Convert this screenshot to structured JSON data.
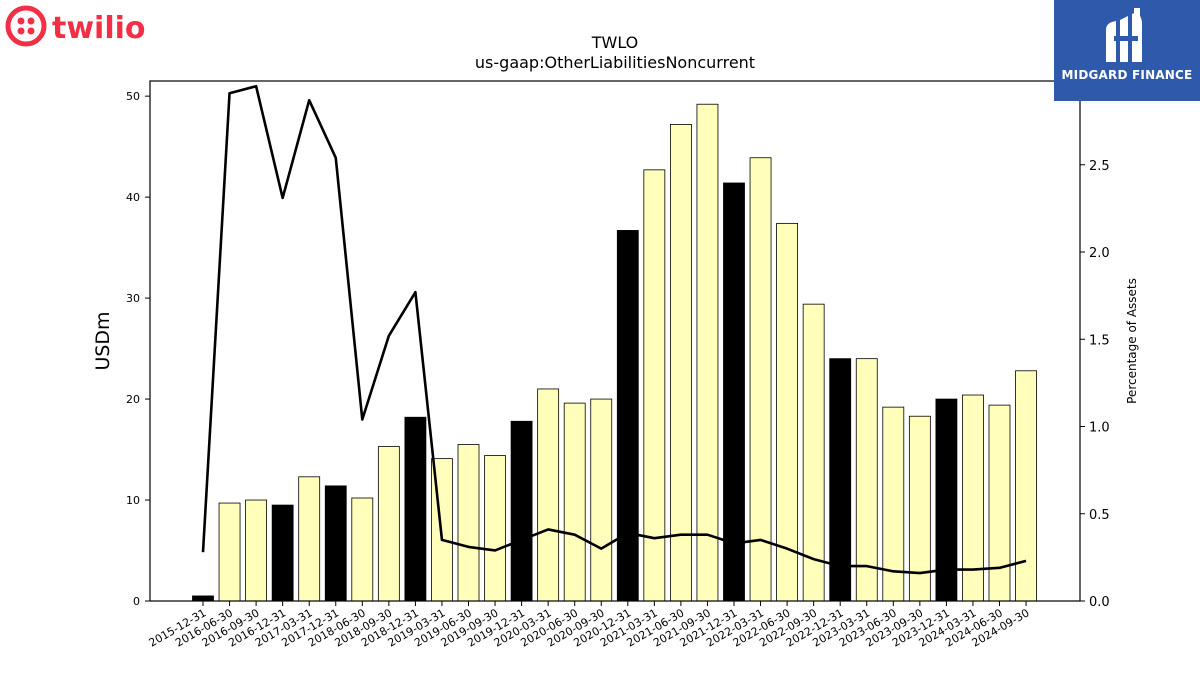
{
  "brands": {
    "left_logo_text": "twilio",
    "right_logo_text": "MIDGARD FINANCE"
  },
  "colors": {
    "highlight_bar": "#000000",
    "normal_bar": "#ffffbb",
    "bar_edge": "#000000",
    "line": "#000000",
    "twilio_red": "#f22f46",
    "midgard_blue": "#2f5aab"
  },
  "chart_data": {
    "type": "bar",
    "title": "TWLO",
    "subtitle": "us-gaap:OtherLiabilitiesNoncurrent",
    "ylabel": "USDm",
    "y2label": "Percentage of Assets",
    "ylim": [
      0,
      51.5
    ],
    "y2lim": [
      0,
      2.98
    ],
    "yticks": [
      0,
      10,
      20,
      30,
      40,
      50
    ],
    "y2ticks": [
      0.0,
      0.5,
      1.0,
      1.5,
      2.0,
      2.5
    ],
    "categories": [
      "2015-12-31",
      "2016-06-30",
      "2016-09-30",
      "2016-12-31",
      "2017-03-31",
      "2017-12-31",
      "2018-06-30",
      "2018-09-30",
      "2018-12-31",
      "2019-03-31",
      "2019-06-30",
      "2019-09-30",
      "2019-12-31",
      "2020-03-31",
      "2020-06-30",
      "2020-09-30",
      "2020-12-31",
      "2021-03-31",
      "2021-06-30",
      "2021-09-30",
      "2021-12-31",
      "2022-03-31",
      "2022-06-30",
      "2022-09-30",
      "2022-12-31",
      "2023-03-31",
      "2023-06-30",
      "2023-09-30",
      "2023-12-31",
      "2024-03-31",
      "2024-06-30",
      "2024-09-30"
    ],
    "series": [
      {
        "type": "bar",
        "axis": "left",
        "values": [
          0.5,
          9.7,
          10.0,
          9.5,
          12.3,
          11.4,
          10.2,
          15.3,
          18.2,
          14.1,
          15.5,
          14.4,
          17.8,
          21.0,
          19.6,
          20.0,
          36.7,
          42.7,
          47.2,
          49.2,
          41.4,
          43.9,
          37.4,
          29.4,
          24.0,
          24.0,
          19.2,
          18.3,
          20.0,
          20.4,
          19.4,
          22.8
        ],
        "highlight": [
          true,
          false,
          false,
          true,
          false,
          true,
          false,
          false,
          true,
          false,
          false,
          false,
          true,
          false,
          false,
          false,
          true,
          false,
          false,
          false,
          true,
          false,
          false,
          false,
          true,
          false,
          false,
          false,
          true,
          false,
          false,
          false
        ]
      },
      {
        "type": "line",
        "axis": "right",
        "values": [
          0.28,
          2.91,
          2.95,
          2.31,
          2.87,
          2.54,
          1.04,
          1.52,
          1.77,
          0.35,
          0.31,
          0.29,
          0.35,
          0.41,
          0.38,
          0.3,
          0.39,
          0.36,
          0.38,
          0.38,
          0.33,
          0.35,
          0.3,
          0.24,
          0.2,
          0.2,
          0.17,
          0.16,
          0.18,
          0.18,
          0.19,
          0.23
        ]
      }
    ],
    "grid": false,
    "legend": "none"
  }
}
